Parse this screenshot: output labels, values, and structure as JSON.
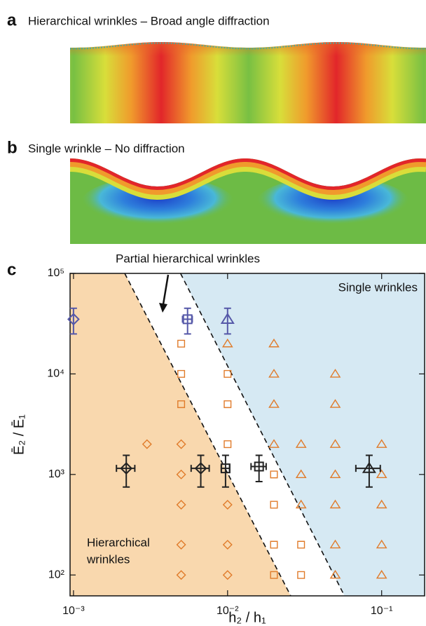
{
  "panel_a": {
    "label": "a",
    "title": "Hierarchical wrinkles – Broad angle diffraction"
  },
  "panel_b": {
    "label": "b",
    "title": "Single wrinkle – No diffraction"
  },
  "chart_data": {
    "type": "scatter",
    "panel_label": "c",
    "x_label": "h₂ / h₁",
    "y_label": "Ē₂ / Ē₁",
    "log_x": true,
    "log_y": true,
    "xlim": [
      0.00095,
      0.19
    ],
    "ylim": [
      62,
      100000
    ],
    "xticks": [
      {
        "value": 0.001,
        "label": "10⁻³"
      },
      {
        "value": 0.01,
        "label": "10⁻²"
      },
      {
        "value": 0.1,
        "label": "10⁻¹"
      }
    ],
    "yticks": [
      {
        "value": 100,
        "label": "10²"
      },
      {
        "value": 1000,
        "label": "10³"
      },
      {
        "value": 10000,
        "label": "10⁴"
      },
      {
        "value": 100000,
        "label": "10⁵"
      }
    ],
    "boundaries": [
      {
        "x": [
          0.00215,
          0.0257
        ],
        "y": [
          100000,
          62
        ]
      },
      {
        "x": [
          0.00495,
          0.0574
        ],
        "y": [
          100000,
          62
        ]
      }
    ],
    "regions": [
      {
        "label_lines": [
          "Hierarchical",
          "wrinkles"
        ],
        "fill": "#f9d8ae"
      },
      {
        "label": "Partial hierarchical wrinkles",
        "fill": "#ffffff"
      },
      {
        "label": "Single wrinkles",
        "fill": "#d6e9f3"
      }
    ],
    "series": [
      {
        "marker": "diamond",
        "color": "#e07b2a",
        "x": [
          0.003,
          0.005,
          0.005,
          0.005,
          0.005,
          0.005,
          0.01,
          0.01,
          0.01
        ],
        "values": [
          2000,
          2000,
          1000,
          500,
          200,
          100,
          500,
          200,
          100
        ]
      },
      {
        "marker": "square",
        "color": "#e07b2a",
        "x": [
          0.005,
          0.005,
          0.005,
          0.01,
          0.01,
          0.01,
          0.02,
          0.02,
          0.02,
          0.02,
          0.03,
          0.03
        ],
        "values": [
          20000,
          10000,
          5000,
          10000,
          5000,
          2000,
          1000,
          500,
          200,
          100,
          200,
          100
        ]
      },
      {
        "marker": "triangle",
        "color": "#e07b2a",
        "x": [
          0.01,
          0.02,
          0.02,
          0.02,
          0.02,
          0.03,
          0.03,
          0.03,
          0.05,
          0.05,
          0.05,
          0.05,
          0.05,
          0.05,
          0.05,
          0.1,
          0.1,
          0.1,
          0.1,
          0.1
        ],
        "values": [
          20000,
          20000,
          10000,
          5000,
          2000,
          2000,
          1000,
          500,
          10000,
          5000,
          2000,
          1000,
          500,
          200,
          100,
          2000,
          1000,
          500,
          200,
          100
        ]
      },
      {
        "marker": "diamond",
        "color": "#5558a8",
        "x": [
          0.001
        ],
        "values": [
          35000
        ],
        "yerr": [
          10000
        ]
      },
      {
        "marker": "square",
        "color": "#5558a8",
        "x": [
          0.0055
        ],
        "values": [
          35000
        ],
        "yerr": [
          10000
        ],
        "xerr": [
          0.0004
        ]
      },
      {
        "marker": "triangle",
        "color": "#5558a8",
        "x": [
          0.01
        ],
        "values": [
          35000
        ],
        "yerr": [
          10000
        ]
      },
      {
        "marker": "diamond",
        "color": "#222222",
        "x": [
          0.0022,
          0.0067
        ],
        "values": [
          1150,
          1150
        ],
        "yerr": [
          400,
          400
        ],
        "xerr": [
          0.0003,
          0.0009
        ]
      },
      {
        "marker": "square",
        "color": "#222222",
        "x": [
          0.0097,
          0.016
        ],
        "values": [
          1150,
          1200
        ],
        "yerr": [
          400,
          350
        ],
        "xerr": [
          0.0006,
          0.0018
        ]
      },
      {
        "marker": "triangle",
        "color": "#222222",
        "x": [
          0.083
        ],
        "values": [
          1150
        ],
        "yerr": [
          400
        ],
        "xerr": [
          0.015
        ]
      }
    ]
  }
}
